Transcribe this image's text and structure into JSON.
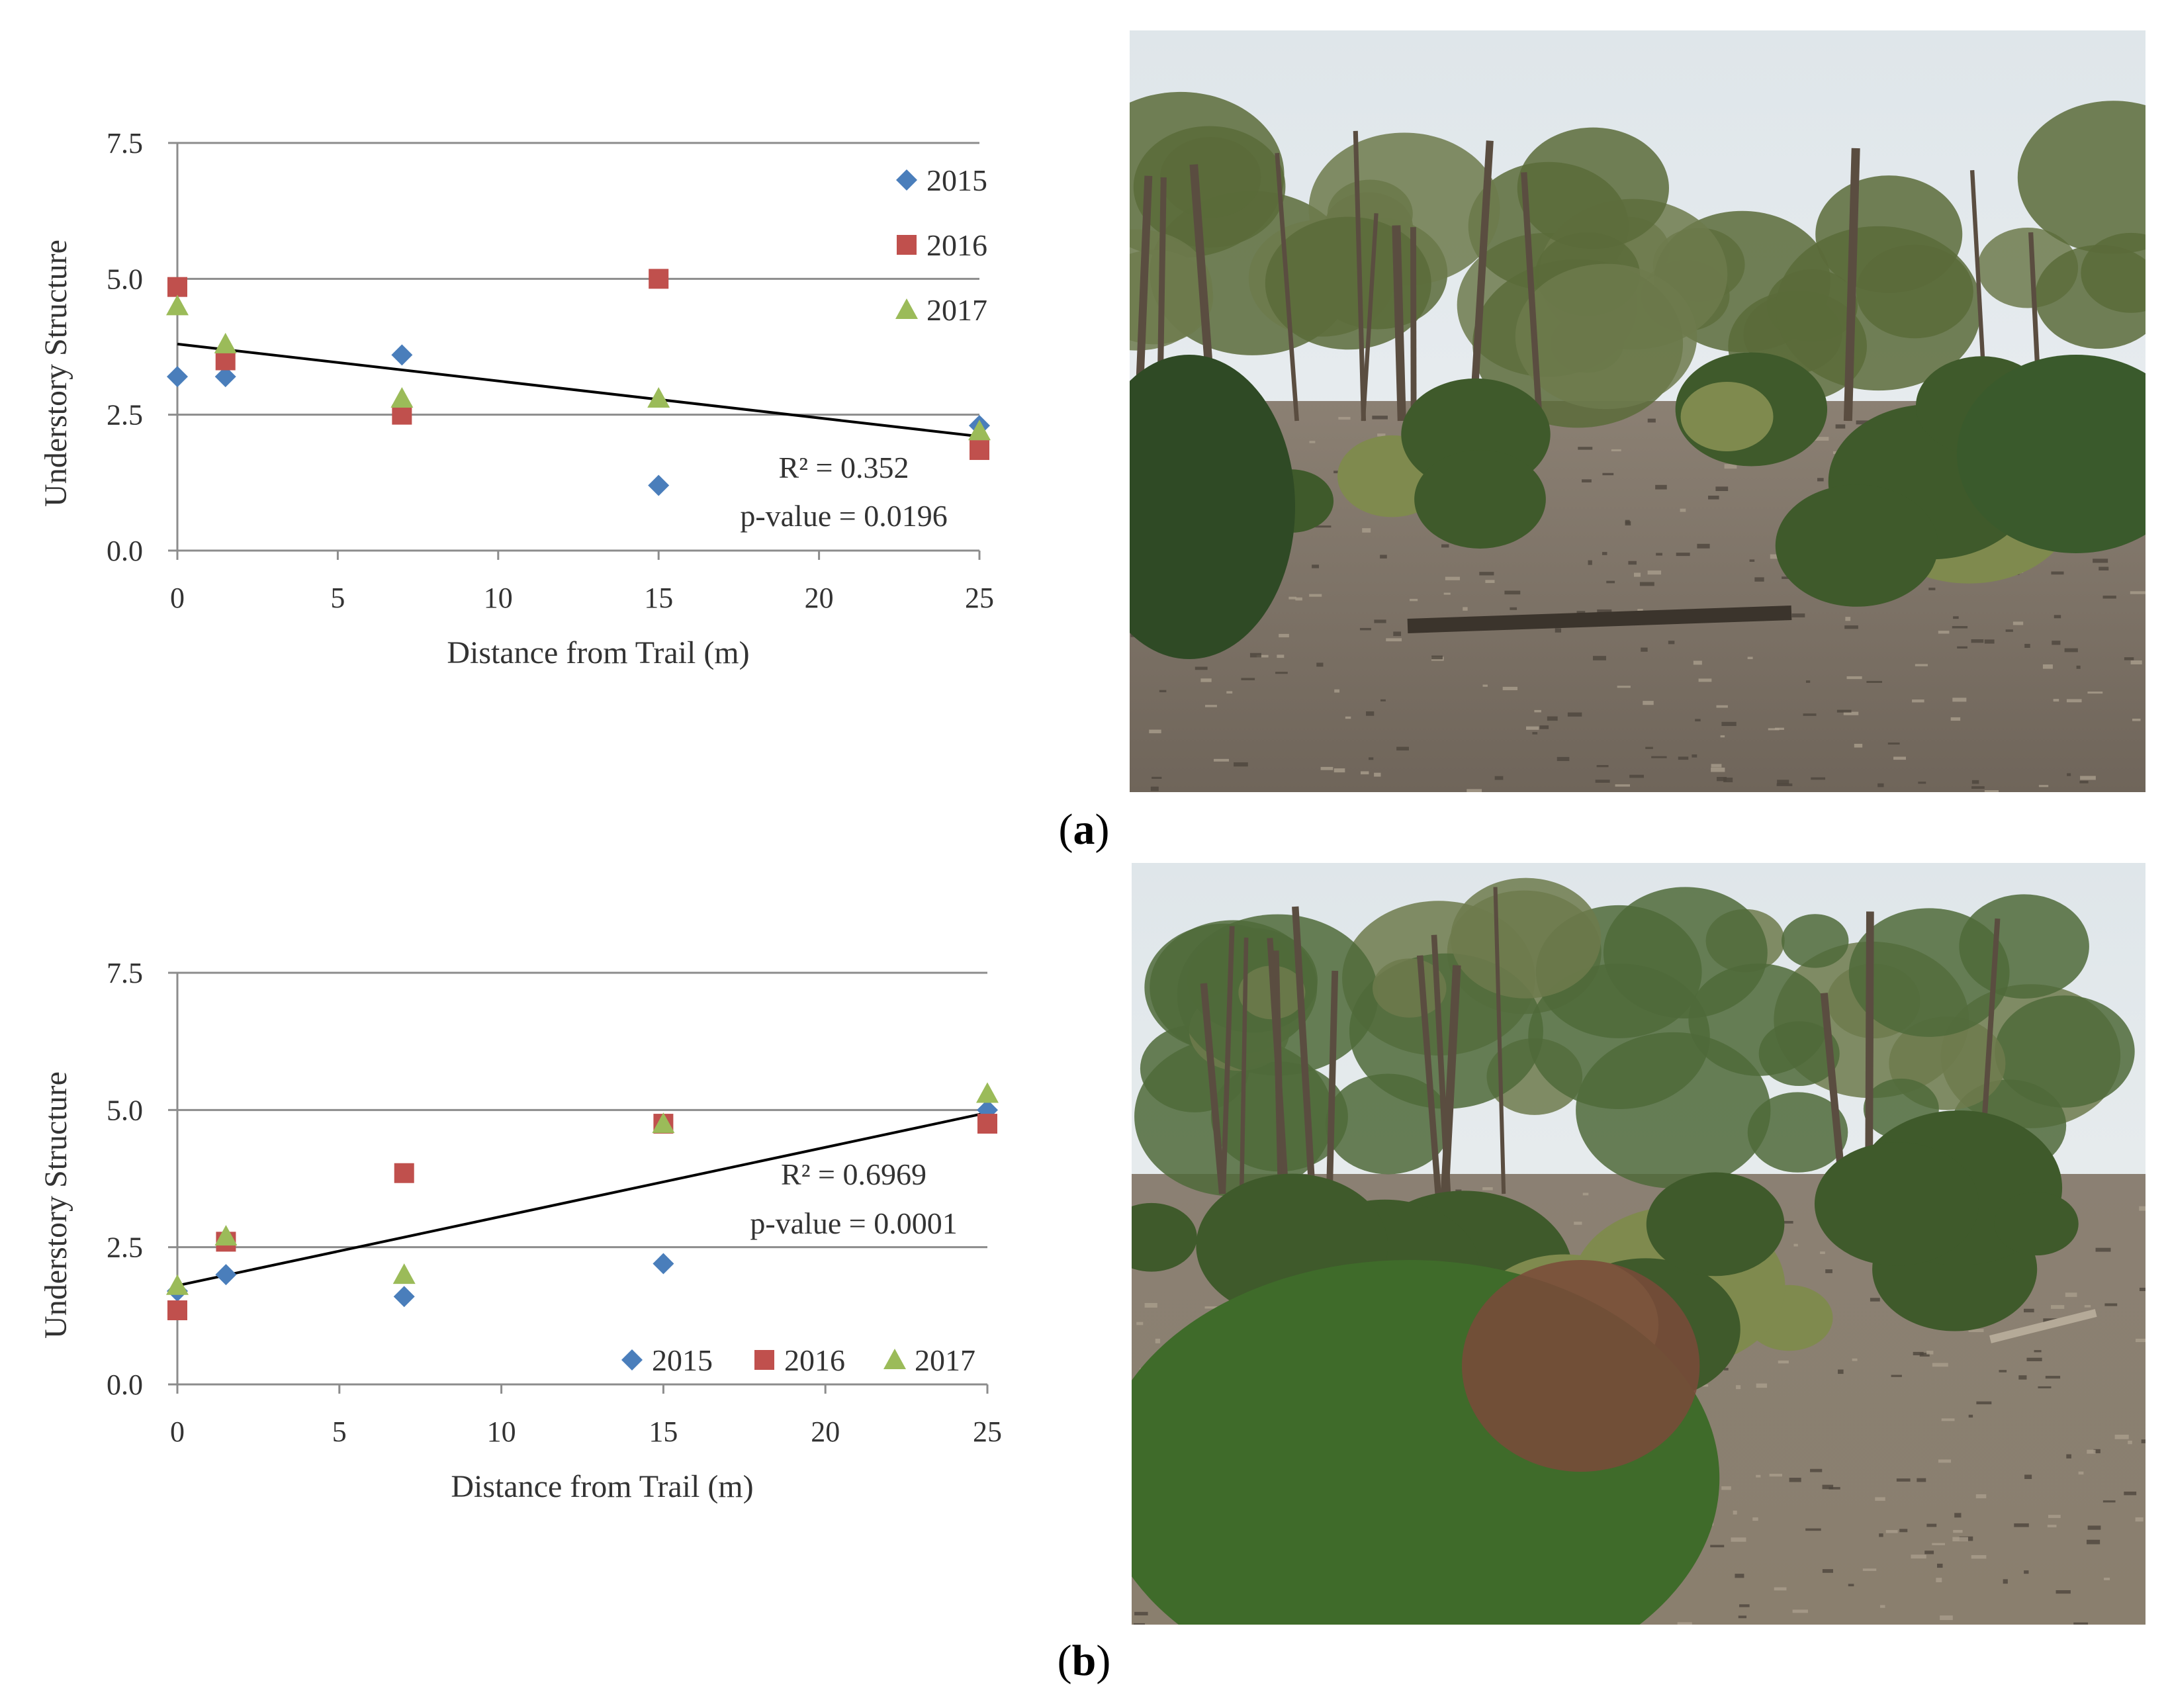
{
  "chart_data": [
    {
      "type": "scatter",
      "xlabel": "Distance from Trail (m)",
      "ylabel": "Understory Structure",
      "xticks": [
        "0",
        "5",
        "10",
        "15",
        "20",
        "25"
      ],
      "yticks": [
        "0.0",
        "2.5",
        "5.0",
        "7.5"
      ],
      "xlim": [
        0,
        25
      ],
      "ylim": [
        0,
        7.5
      ],
      "grid": "horizontal",
      "legend": {
        "placement": "top-right-vertical"
      },
      "series": [
        {
          "name": "2015",
          "color": "#4a7ebb",
          "marker": "diamond",
          "points": [
            [
              0,
              3.2
            ],
            [
              1.5,
              3.2
            ],
            [
              7,
              3.6
            ],
            [
              15,
              1.2
            ],
            [
              25,
              2.3
            ]
          ]
        },
        {
          "name": "2016",
          "color": "#c0504d",
          "marker": "square",
          "points": [
            [
              0,
              4.85
            ],
            [
              1.5,
              3.5
            ],
            [
              7,
              2.5
            ],
            [
              15,
              5.0
            ],
            [
              25,
              1.85
            ]
          ]
        },
        {
          "name": "2017",
          "color": "#9bbb59",
          "marker": "triangle",
          "points": [
            [
              0,
              4.5
            ],
            [
              1.5,
              3.8
            ],
            [
              7,
              2.8
            ],
            [
              15,
              2.8
            ],
            [
              25,
              2.2
            ]
          ]
        }
      ],
      "trendline": {
        "x": [
          0,
          25
        ],
        "y": [
          3.8,
          2.1
        ],
        "color": "#000000"
      },
      "annotations": [
        "R² = 0.352",
        "p-value = 0.0196"
      ]
    },
    {
      "type": "scatter",
      "xlabel": "Distance from Trail (m)",
      "ylabel": "Understory Structure",
      "xticks": [
        "0",
        "5",
        "10",
        "15",
        "20",
        "25"
      ],
      "yticks": [
        "0.0",
        "2.5",
        "5.0",
        "7.5"
      ],
      "xlim": [
        0,
        25
      ],
      "ylim": [
        0,
        7.5
      ],
      "grid": "horizontal",
      "legend": {
        "placement": "bottom-right-horizontal"
      },
      "series": [
        {
          "name": "2015",
          "color": "#4a7ebb",
          "marker": "diamond",
          "points": [
            [
              0,
              1.7
            ],
            [
              1.5,
              2.0
            ],
            [
              7,
              1.6
            ],
            [
              15,
              2.2
            ],
            [
              25,
              5.0
            ]
          ]
        },
        {
          "name": "2016",
          "color": "#c0504d",
          "marker": "square",
          "points": [
            [
              0,
              1.35
            ],
            [
              1.5,
              2.6
            ],
            [
              7,
              3.85
            ],
            [
              15,
              4.75
            ],
            [
              25,
              4.75
            ]
          ]
        },
        {
          "name": "2017",
          "color": "#9bbb59",
          "marker": "triangle",
          "points": [
            [
              0,
              1.8
            ],
            [
              1.5,
              2.7
            ],
            [
              7,
              2.0
            ],
            [
              15,
              4.75
            ],
            [
              25,
              5.3
            ]
          ]
        }
      ],
      "trendline": {
        "x": [
          0,
          25
        ],
        "y": [
          1.8,
          4.95
        ],
        "color": "#000000"
      },
      "annotations": [
        "R² = 0.6969",
        "p-value = 0.0001"
      ]
    }
  ],
  "panel_labels": {
    "a": "a",
    "b": "b"
  },
  "photos": [
    {
      "scene": "open heathland with eucalyptus trees and litter-covered ground",
      "sky": "#eef1f3",
      "trees": "#5b6b3a",
      "ground": "#6f655a"
    },
    {
      "scene": "coastal woodland with dense green shrubs in foreground",
      "sky": "#f1f3f2",
      "trees": "#4f6a3a",
      "ground": "#8a7f6e"
    }
  ]
}
